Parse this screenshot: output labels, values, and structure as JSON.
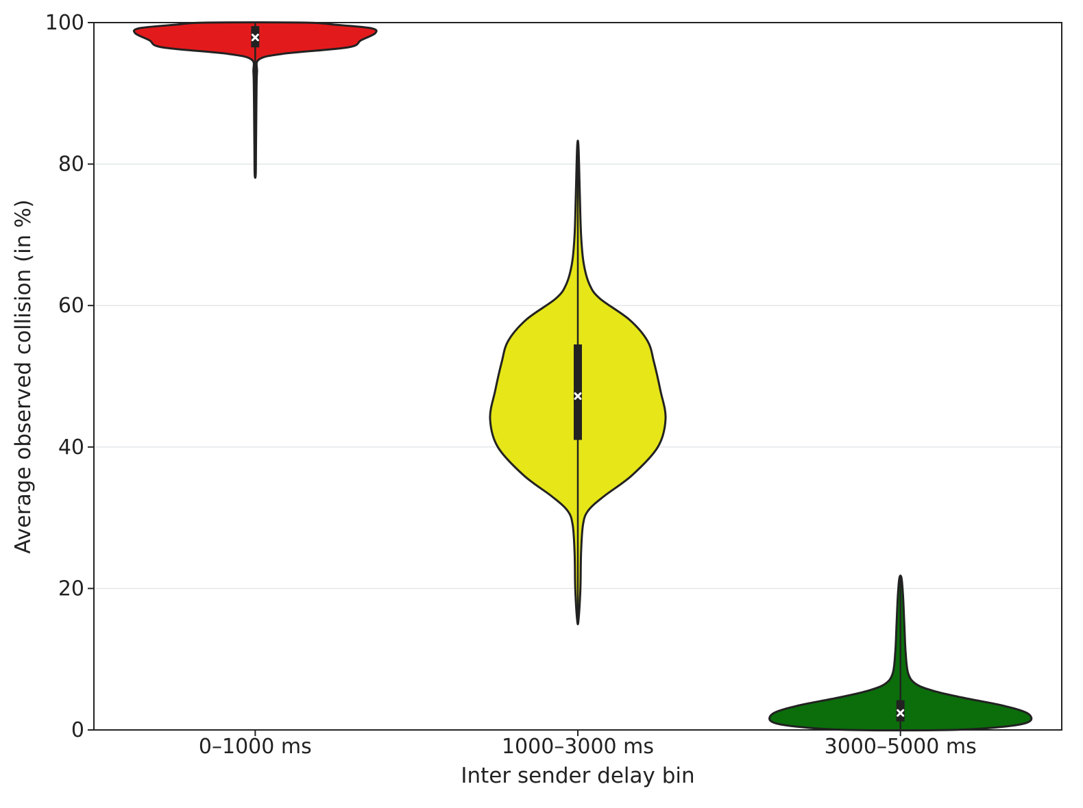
{
  "chart_data": {
    "type": "violin",
    "title": "",
    "xlabel": "Inter sender delay bin",
    "ylabel": "Average observed collision (in %)",
    "ylim": [
      0,
      100
    ],
    "yticks": [
      0,
      20,
      40,
      60,
      80,
      100
    ],
    "grid": "horizontal",
    "categories": [
      "0–1000 ms",
      "1000–3000 ms",
      "3000–5000 ms"
    ],
    "series": [
      {
        "category": "0–1000 ms",
        "color": "#e31a1c",
        "min": 78.5,
        "q1": 96.5,
        "median": 97.9,
        "q3": 99.5,
        "max": 100,
        "density": [
          [
            78.5,
            0.004
          ],
          [
            82,
            0.006
          ],
          [
            86,
            0.008
          ],
          [
            90,
            0.01
          ],
          [
            93,
            0.014
          ],
          [
            94.8,
            0.03
          ],
          [
            95.6,
            0.22
          ],
          [
            96.5,
            0.72
          ],
          [
            97.5,
            0.82
          ],
          [
            98.5,
            0.93
          ],
          [
            99.2,
            0.9
          ],
          [
            99.7,
            0.62
          ],
          [
            100,
            0.38
          ]
        ]
      },
      {
        "category": "1000–3000 ms",
        "color": "#e6e619",
        "min": 15.5,
        "q1": 41,
        "median": 47.2,
        "q3": 54.5,
        "max": 82.5,
        "density": [
          [
            15.5,
            0.005
          ],
          [
            20,
            0.02
          ],
          [
            25,
            0.025
          ],
          [
            29,
            0.04
          ],
          [
            31,
            0.08
          ],
          [
            33,
            0.2
          ],
          [
            36,
            0.42
          ],
          [
            40,
            0.62
          ],
          [
            44,
            0.68
          ],
          [
            48,
            0.64
          ],
          [
            52,
            0.59
          ],
          [
            55,
            0.54
          ],
          [
            58,
            0.4
          ],
          [
            61,
            0.17
          ],
          [
            63,
            0.09
          ],
          [
            66,
            0.045
          ],
          [
            70,
            0.025
          ],
          [
            76,
            0.015
          ],
          [
            82.5,
            0.005
          ]
        ]
      },
      {
        "category": "3000–5000 ms",
        "color": "#0b6e0b",
        "min": 0,
        "q1": 1.2,
        "median": 2.4,
        "q3": 4.2,
        "max": 21.5,
        "density": [
          [
            0,
            0.4
          ],
          [
            0.5,
            0.82
          ],
          [
            1.2,
            1.0
          ],
          [
            2.4,
            0.98
          ],
          [
            3.5,
            0.78
          ],
          [
            4.5,
            0.5
          ],
          [
            5.5,
            0.26
          ],
          [
            6.5,
            0.12
          ],
          [
            8,
            0.06
          ],
          [
            11,
            0.04
          ],
          [
            15,
            0.03
          ],
          [
            19,
            0.02
          ],
          [
            21.5,
            0.008
          ]
        ]
      }
    ]
  }
}
